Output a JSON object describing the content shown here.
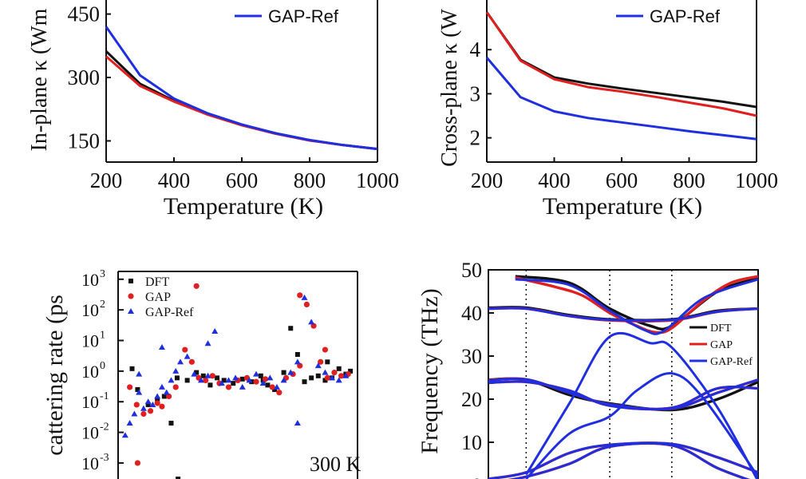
{
  "colors": {
    "DFT": "#111111",
    "GAP": "#e02020",
    "GAP-Ref": "#1f2fe0",
    "axis": "#111111"
  },
  "chart_data": [
    {
      "type": "line",
      "ylabel": "In-plane κ (Wm",
      "xlabel": "Temperature (K)",
      "x_ticks": [
        "200",
        "400",
        "600",
        "800",
        "1000"
      ],
      "y_ticks": [
        "150",
        "300",
        "450"
      ],
      "xlim": [
        200,
        1000
      ],
      "ylim": [
        100,
        470
      ],
      "legend": {
        "entries": [
          "GAP-Ref"
        ],
        "placement": "top-right"
      },
      "series": [
        {
          "name": "DFT",
          "color": "DFT",
          "x": [
            200,
            300,
            400,
            500,
            600,
            700,
            800,
            900,
            1000
          ],
          "y": [
            362,
            285,
            245,
            213,
            188,
            168,
            152,
            140,
            131
          ]
        },
        {
          "name": "GAP",
          "color": "GAP",
          "x": [
            200,
            300,
            400,
            500,
            600,
            700,
            800,
            900,
            1000
          ],
          "y": [
            350,
            280,
            243,
            212,
            187,
            167,
            151,
            140,
            131
          ]
        },
        {
          "name": "GAP-Ref",
          "color": "GAP-Ref",
          "x": [
            200,
            300,
            400,
            500,
            600,
            700,
            800,
            900,
            1000
          ],
          "y": [
            420,
            305,
            250,
            215,
            189,
            168,
            152,
            140,
            131
          ]
        }
      ]
    },
    {
      "type": "line",
      "ylabel": "Cross-plane κ (W",
      "xlabel": "Temperature (K)",
      "x_ticks": [
        "200",
        "400",
        "600",
        "800",
        "1000"
      ],
      "y_ticks": [
        "2",
        "3",
        "4"
      ],
      "xlim": [
        200,
        1000
      ],
      "ylim": [
        1.45,
        5.0
      ],
      "legend": {
        "entries": [
          "GAP-Ref"
        ],
        "placement": "top-right"
      },
      "series": [
        {
          "name": "DFT",
          "color": "DFT",
          "x": [
            200,
            300,
            400,
            500,
            600,
            700,
            800,
            900,
            1000
          ],
          "y": [
            4.85,
            3.77,
            3.37,
            3.23,
            3.12,
            3.02,
            2.92,
            2.82,
            2.7
          ]
        },
        {
          "name": "GAP",
          "color": "GAP",
          "x": [
            200,
            300,
            400,
            500,
            600,
            700,
            800,
            900,
            1000
          ],
          "y": [
            4.85,
            3.75,
            3.33,
            3.15,
            3.05,
            2.93,
            2.8,
            2.67,
            2.5
          ]
        },
        {
          "name": "GAP-Ref",
          "color": "GAP-Ref",
          "x": [
            200,
            300,
            400,
            500,
            600,
            700,
            800,
            900,
            1000
          ],
          "y": [
            3.82,
            2.92,
            2.6,
            2.45,
            2.35,
            2.25,
            2.15,
            2.06,
            1.97
          ]
        }
      ]
    },
    {
      "type": "scatter",
      "ylabel": "cattering rate (ps",
      "y_scale": "log",
      "y_ticks": [
        "10",
        "10",
        "10",
        "10",
        "10",
        "10",
        "10"
      ],
      "y_tick_exponents": [
        "3",
        "2",
        "1",
        "0",
        "-1",
        "-2",
        "-3"
      ],
      "y_tick_values": [
        1000,
        100,
        10,
        1,
        0.1,
        0.01,
        0.001
      ],
      "ylim": [
        0.0003,
        1800
      ],
      "xlim": [
        0,
        50
      ],
      "annotation": "300 K",
      "legend": {
        "entries": [
          "DFT",
          "GAP",
          "GAP-Ref"
        ],
        "placement": "top-left"
      },
      "series": [
        {
          "name": "DFT",
          "color": "DFT",
          "marker": "square",
          "x": [
            2.0,
            3.2,
            5.5,
            7.5,
            9.0,
            10.5,
            11.8,
            14,
            16,
            17.5,
            19,
            20.5,
            22,
            24,
            26,
            28,
            30,
            31.5,
            33,
            35,
            36.5,
            38,
            39.5,
            41,
            42.5,
            44,
            45.5,
            47,
            48.5,
            49.5,
            30.5,
            12.0,
            44.5
          ],
          "y": [
            1.2,
            0.25,
            0.08,
            0.12,
            0.15,
            0.02,
            0.6,
            0.5,
            0.9,
            0.7,
            0.35,
            0.6,
            0.5,
            0.4,
            0.55,
            0.45,
            0.7,
            0.35,
            0.25,
            0.9,
            25,
            3.5,
            0.45,
            0.6,
            0.7,
            0.5,
            0.6,
            1.2,
            0.8,
            1.0,
            0.5,
            0.0003,
            2.0
          ]
        },
        {
          "name": "GAP",
          "color": "GAP",
          "marker": "circle",
          "x": [
            1.5,
            3.0,
            4.5,
            6.0,
            7.5,
            8.5,
            10.0,
            11.5,
            13.5,
            15.0,
            16.5,
            18.0,
            19.5,
            21,
            23,
            25,
            27,
            29,
            31,
            32.5,
            34,
            35.5,
            37,
            38.5,
            40,
            41.5,
            43,
            44.5,
            46,
            47.5,
            49,
            16.0,
            3.2,
            38.5,
            44.0
          ],
          "y": [
            0.3,
            0.08,
            0.04,
            0.05,
            0.09,
            0.07,
            0.15,
            0.3,
            5.0,
            2.0,
            0.6,
            0.5,
            0.7,
            0.4,
            0.3,
            0.5,
            0.6,
            0.45,
            0.55,
            0.3,
            0.2,
            0.6,
            0.8,
            1.5,
            150,
            30,
            2.0,
            0.6,
            0.9,
            0.7,
            0.8,
            600,
            0.001,
            300,
            5.0
          ]
        },
        {
          "name": "GAP-Ref",
          "color": "GAP-Ref",
          "marker": "triangle",
          "x": [
            0.5,
            1.5,
            2.5,
            3.5,
            4.5,
            5.5,
            6.5,
            7.5,
            8.5,
            9.5,
            10.5,
            11.5,
            12.5,
            14,
            15.5,
            17,
            18.5,
            20,
            21.5,
            23,
            24.5,
            26,
            27.5,
            29,
            30.5,
            32,
            33.5,
            35,
            36.5,
            38,
            39.5,
            41,
            42.5,
            44,
            45.5,
            47,
            48.5,
            18.5,
            38.0,
            3.5,
            8.5
          ],
          "y": [
            0.008,
            0.02,
            0.04,
            0.2,
            0.06,
            0.1,
            0.08,
            0.15,
            0.3,
            0.2,
            0.5,
            1.0,
            2.0,
            3.0,
            0.8,
            0.5,
            0.7,
            20,
            0.4,
            0.5,
            0.6,
            0.3,
            0.5,
            0.8,
            0.4,
            0.6,
            0.3,
            0.5,
            0.9,
            2.0,
            250,
            40,
            1.5,
            0.9,
            0.6,
            0.5,
            0.7,
            8.0,
            0.02,
            0.8,
            6.0
          ]
        }
      ]
    },
    {
      "type": "line",
      "ylabel": "Frequency (THz)",
      "y_ticks": [
        "0",
        "10",
        "20",
        "30",
        "40",
        "50"
      ],
      "ylim": [
        0,
        50
      ],
      "xlim": [
        0,
        1
      ],
      "k_path_lines": [
        0.14,
        0.45,
        0.68
      ],
      "legend": {
        "entries": [
          "DFT",
          "GAP",
          "GAP-Ref"
        ],
        "placement": "right"
      },
      "series": [
        {
          "name": "DFT",
          "color": "DFT",
          "bands": [
            [
              [
                0,
                41.2
              ],
              [
                0.14,
                41.2
              ],
              [
                0.3,
                39.5
              ],
              [
                0.45,
                38.5
              ],
              [
                0.68,
                38.5
              ],
              [
                0.85,
                40.5
              ],
              [
                1,
                41
              ]
            ],
            [
              [
                0.1,
                48.5
              ],
              [
                0.3,
                47
              ],
              [
                0.45,
                41
              ],
              [
                0.6,
                37
              ],
              [
                0.68,
                37
              ],
              [
                0.85,
                45
              ],
              [
                1,
                48
              ]
            ],
            [
              [
                0,
                24.5
              ],
              [
                0.14,
                24.5
              ],
              [
                0.3,
                21
              ],
              [
                0.45,
                19
              ],
              [
                0.68,
                17.5
              ],
              [
                0.85,
                20
              ],
              [
                1,
                24
              ]
            ]
          ]
        },
        {
          "name": "GAP",
          "color": "GAP",
          "bands": [
            [
              [
                0,
                41
              ],
              [
                0.14,
                41
              ],
              [
                0.3,
                39.3
              ],
              [
                0.45,
                38.3
              ],
              [
                0.68,
                38.3
              ],
              [
                0.85,
                40.3
              ],
              [
                1,
                41
              ]
            ],
            [
              [
                0.1,
                48.2
              ],
              [
                0.25,
                46
              ],
              [
                0.35,
                44
              ],
              [
                0.45,
                40
              ],
              [
                0.55,
                37
              ],
              [
                0.62,
                35.5
              ],
              [
                0.68,
                36.5
              ],
              [
                0.8,
                43
              ],
              [
                0.9,
                47
              ],
              [
                1,
                48.5
              ]
            ],
            [
              [
                0,
                24.4
              ],
              [
                0.14,
                24.6
              ],
              [
                0.3,
                21.5
              ],
              [
                0.45,
                18.8
              ],
              [
                0.68,
                17.8
              ],
              [
                0.85,
                21.5
              ],
              [
                1,
                24.5
              ]
            ],
            [
              [
                0,
                23.8
              ],
              [
                0.14,
                24
              ],
              [
                0.3,
                22
              ],
              [
                0.45,
                18.5
              ],
              [
                0.68,
                18
              ],
              [
                0.85,
                22.5
              ],
              [
                1,
                22.5
              ]
            ],
            [
              [
                0,
                1.5
              ],
              [
                0.14,
                3
              ],
              [
                0.3,
                7.5
              ],
              [
                0.45,
                9.4
              ],
              [
                0.68,
                9.6
              ],
              [
                0.85,
                6.5
              ],
              [
                1,
                3
              ]
            ],
            [
              [
                0,
                0.5
              ],
              [
                0.14,
                2
              ],
              [
                0.3,
                5
              ],
              [
                0.45,
                9
              ],
              [
                0.68,
                9.3
              ],
              [
                0.85,
                4
              ],
              [
                1,
                0.5
              ]
            ]
          ]
        },
        {
          "name": "GAP-Ref",
          "color": "GAP-Ref",
          "bands": [
            [
              [
                0,
                41
              ],
              [
                0.14,
                41
              ],
              [
                0.3,
                39.3
              ],
              [
                0.45,
                38.4
              ],
              [
                0.68,
                38.4
              ],
              [
                0.85,
                40.3
              ],
              [
                1,
                41
              ]
            ],
            [
              [
                0.1,
                47.8
              ],
              [
                0.3,
                46.5
              ],
              [
                0.45,
                40.5
              ],
              [
                0.58,
                36
              ],
              [
                0.65,
                35.8
              ],
              [
                0.8,
                43.5
              ],
              [
                1,
                47.8
              ]
            ],
            [
              [
                0,
                24.3
              ],
              [
                0.14,
                24.6
              ],
              [
                0.3,
                21.5
              ],
              [
                0.45,
                18.8
              ],
              [
                0.68,
                17.8
              ],
              [
                0.85,
                21.5
              ],
              [
                1,
                24.5
              ]
            ],
            [
              [
                0,
                23.8
              ],
              [
                0.14,
                24
              ],
              [
                0.3,
                22
              ],
              [
                0.45,
                18.5
              ],
              [
                0.68,
                18
              ],
              [
                0.85,
                22.5
              ],
              [
                1,
                22.5
              ]
            ],
            [
              [
                0.14,
                2.5
              ],
              [
                0.3,
                19
              ],
              [
                0.45,
                34.5
              ],
              [
                0.6,
                33
              ],
              [
                0.68,
                32
              ],
              [
                0.85,
                18
              ],
              [
                1,
                1
              ]
            ],
            [
              [
                0.14,
                1.5
              ],
              [
                0.3,
                12
              ],
              [
                0.45,
                16
              ],
              [
                0.55,
                22
              ],
              [
                0.68,
                26
              ],
              [
                0.8,
                20
              ],
              [
                1,
                2
              ]
            ],
            [
              [
                0,
                1.5
              ],
              [
                0.14,
                3
              ],
              [
                0.3,
                7.5
              ],
              [
                0.45,
                9.4
              ],
              [
                0.68,
                9.6
              ],
              [
                0.85,
                6.5
              ],
              [
                1,
                3
              ]
            ],
            [
              [
                0,
                0.5
              ],
              [
                0.14,
                2
              ],
              [
                0.3,
                5
              ],
              [
                0.45,
                9
              ],
              [
                0.68,
                9.3
              ],
              [
                0.85,
                4
              ],
              [
                1,
                0.5
              ]
            ]
          ]
        }
      ]
    }
  ]
}
